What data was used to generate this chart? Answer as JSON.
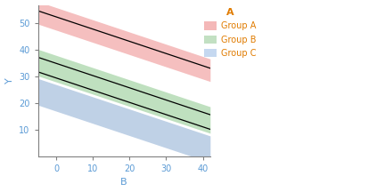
{
  "title": "",
  "xlabel": "B",
  "ylabel": "Y",
  "xlim": [
    -5,
    42
  ],
  "ylim": [
    0,
    57
  ],
  "xticks": [
    0,
    10,
    20,
    30,
    40
  ],
  "yticks": [
    10,
    20,
    30,
    40,
    50
  ],
  "groups": [
    "Group A",
    "Group B",
    "Group C"
  ],
  "line_colors": [
    "#000000",
    "#000000",
    "#000000"
  ],
  "fill_colors": [
    "#f4b8b8",
    "#b8ddb8",
    "#b8cce4"
  ],
  "legend_colors": [
    "#f4b8b8",
    "#c2e0c2",
    "#c5d8f0"
  ],
  "lines": [
    {
      "intercept": 52.5,
      "slope": -0.46
    },
    {
      "intercept": 35.0,
      "slope": -0.46
    },
    {
      "intercept": 29.5,
      "slope": -0.46
    }
  ],
  "bands": [
    {
      "upper_intercept": 56.0,
      "upper_slope": -0.46,
      "lower_intercept": 47.5,
      "lower_slope": -0.46
    },
    {
      "upper_intercept": 38.0,
      "upper_slope": -0.46,
      "lower_intercept": 28.0,
      "lower_slope": -0.46
    },
    {
      "upper_intercept": 27.0,
      "upper_slope": -0.46,
      "lower_intercept": 17.0,
      "lower_slope": -0.46
    }
  ],
  "legend_title": "A",
  "legend_title_color": "#e07b00",
  "legend_label_color": "#e07b00",
  "axis_color": "#808080",
  "tick_color": "#5a9ad5",
  "background_color": "#ffffff",
  "label_fontsize": 8,
  "tick_fontsize": 7,
  "legend_fontsize": 7,
  "legend_title_fontsize": 8
}
